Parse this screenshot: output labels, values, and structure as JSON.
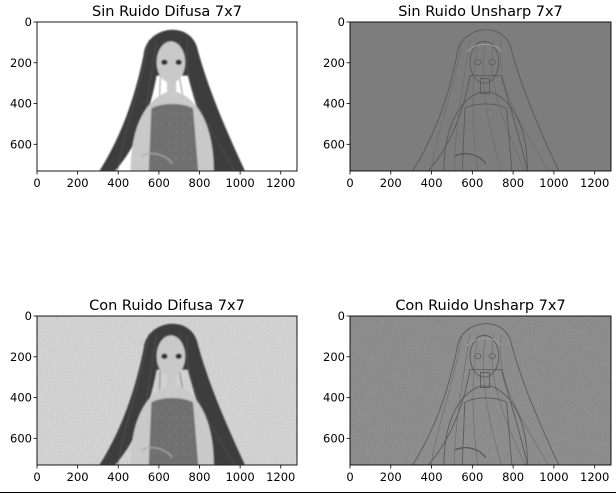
{
  "chart_data": [
    {
      "type": "image",
      "title": "Sin Ruido Difusa 7x7",
      "xticks": [
        0,
        200,
        400,
        600,
        800,
        1000,
        1200
      ],
      "yticks": [
        0,
        200,
        400,
        600
      ],
      "xlim": [
        0,
        1280
      ],
      "ylim": [
        731,
        0
      ],
      "image_style": "smoothed",
      "image": {
        "background": "#ffffff",
        "tone": "#7a7a7a",
        "noise": false
      }
    },
    {
      "type": "image",
      "title": "Sin Ruido Unsharp 7x7",
      "xticks": [
        0,
        200,
        400,
        600,
        800,
        1000,
        1200
      ],
      "yticks": [
        0,
        200,
        400,
        600
      ],
      "xlim": [
        0,
        1280
      ],
      "ylim": [
        731,
        0
      ],
      "image_style": "edges",
      "image": {
        "background": "#7d7d7d",
        "tone": "#6a6a6a",
        "noise": false
      }
    },
    {
      "type": "image",
      "title": "Con Ruido Difusa 7x7",
      "xticks": [
        0,
        200,
        400,
        600,
        800,
        1000,
        1200
      ],
      "yticks": [
        0,
        200,
        400,
        600
      ],
      "xlim": [
        0,
        1280
      ],
      "ylim": [
        731,
        0
      ],
      "image_style": "smoothed",
      "image": {
        "background": "#d9d9d9",
        "tone": "#787878",
        "noise": true
      }
    },
    {
      "type": "image",
      "title": "Con Ruido Unsharp 7x7",
      "xticks": [
        0,
        200,
        400,
        600,
        800,
        1000,
        1200
      ],
      "yticks": [
        0,
        200,
        400,
        600
      ],
      "xlim": [
        0,
        1280
      ],
      "ylim": [
        731,
        0
      ],
      "image_style": "edges",
      "image": {
        "background": "#7f7f7f",
        "tone": "#6b6b6b",
        "noise": true
      }
    }
  ]
}
